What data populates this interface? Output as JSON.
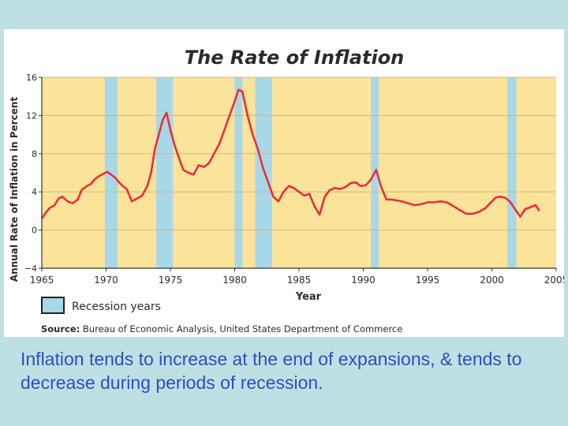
{
  "chart_data": {
    "type": "line",
    "title": "The Rate of Inflation",
    "xlabel": "Year",
    "ylabel": "Annual Rate of Inflation in Percent",
    "xlim": [
      1965,
      2005
    ],
    "ylim": [
      -4,
      16
    ],
    "xticks": [
      1965,
      1970,
      1975,
      1980,
      1985,
      1990,
      1995,
      2000,
      2005
    ],
    "yticks": [
      -4,
      0,
      4,
      8,
      12,
      16
    ],
    "recessions": [
      [
        1969.9,
        1970.9
      ],
      [
        1973.9,
        1975.2
      ],
      [
        1980.0,
        1980.6
      ],
      [
        1981.6,
        1982.9
      ],
      [
        1990.6,
        1991.2
      ],
      [
        2001.2,
        2001.9
      ]
    ],
    "legend": {
      "label": "Recession years",
      "position": "bottom-left"
    },
    "source_label": "Source:",
    "source_text": "Bureau of Economic Analysis, United States Department of Commerce",
    "colors": {
      "plot_bg": "#fce39a",
      "recession": "#a8d8e8",
      "line": "#e8303a"
    },
    "series": [
      {
        "x": [
          1965.0,
          1965.3,
          1965.6,
          1966.0,
          1966.3,
          1966.6,
          1967.0,
          1967.4,
          1967.8,
          1968.1,
          1968.5,
          1968.8,
          1969.1,
          1969.4,
          1969.8,
          1970.1,
          1970.4,
          1970.7,
          1971.0,
          1971.3,
          1971.6,
          1972.0,
          1972.4,
          1972.8,
          1973.2,
          1973.5,
          1973.8,
          1974.1,
          1974.4,
          1974.7,
          1975.0,
          1975.3,
          1975.6,
          1976.0,
          1976.4,
          1976.8,
          1977.2,
          1977.6,
          1978.0,
          1978.4,
          1978.8,
          1979.2,
          1979.6,
          1980.0,
          1980.3,
          1980.6,
          1981.0,
          1981.4,
          1981.8,
          1982.2,
          1982.6,
          1983.0,
          1983.4,
          1983.8,
          1984.2,
          1984.6,
          1985.0,
          1985.4,
          1985.8,
          1986.2,
          1986.6,
          1987.0,
          1987.4,
          1987.8,
          1988.2,
          1988.6,
          1989.0,
          1989.4,
          1989.8,
          1990.2,
          1990.6,
          1991.0,
          1991.4,
          1991.8,
          1992.2,
          1992.6,
          1993.0,
          1993.5,
          1994.0,
          1994.5,
          1995.0,
          1995.5,
          1996.0,
          1996.5,
          1997.0,
          1997.5,
          1998.0,
          1998.5,
          1999.0,
          1999.5,
          2000.0,
          2000.3,
          2000.6,
          2001.0,
          2001.4,
          2001.8,
          2002.2,
          2002.6,
          2003.0,
          2003.4,
          2003.7
        ],
        "values": [
          1.2,
          1.8,
          2.3,
          2.6,
          3.3,
          3.5,
          3.0,
          2.8,
          3.2,
          4.2,
          4.6,
          4.8,
          5.3,
          5.6,
          5.9,
          6.1,
          5.8,
          5.5,
          5.0,
          4.6,
          4.3,
          3.0,
          3.3,
          3.6,
          4.6,
          6.0,
          8.5,
          10.0,
          11.5,
          12.3,
          10.5,
          9.0,
          7.8,
          6.3,
          6.0,
          5.8,
          6.8,
          6.6,
          7.0,
          8.0,
          9.0,
          10.5,
          12.0,
          13.5,
          14.7,
          14.5,
          12.0,
          10.0,
          8.5,
          6.5,
          5.0,
          3.5,
          3.0,
          4.0,
          4.6,
          4.4,
          4.0,
          3.6,
          3.8,
          2.5,
          1.6,
          3.5,
          4.2,
          4.4,
          4.3,
          4.5,
          4.9,
          5.0,
          4.6,
          4.7,
          5.3,
          6.3,
          4.5,
          3.2,
          3.2,
          3.1,
          3.0,
          2.8,
          2.6,
          2.7,
          2.9,
          2.9,
          3.0,
          2.9,
          2.5,
          2.1,
          1.7,
          1.7,
          1.9,
          2.3,
          3.0,
          3.4,
          3.5,
          3.4,
          3.0,
          2.2,
          1.4,
          2.2,
          2.4,
          2.6,
          2.0
        ]
      }
    ]
  },
  "caption": "Inflation tends to increase at the end of expansions, & tends to decrease during periods of recession."
}
